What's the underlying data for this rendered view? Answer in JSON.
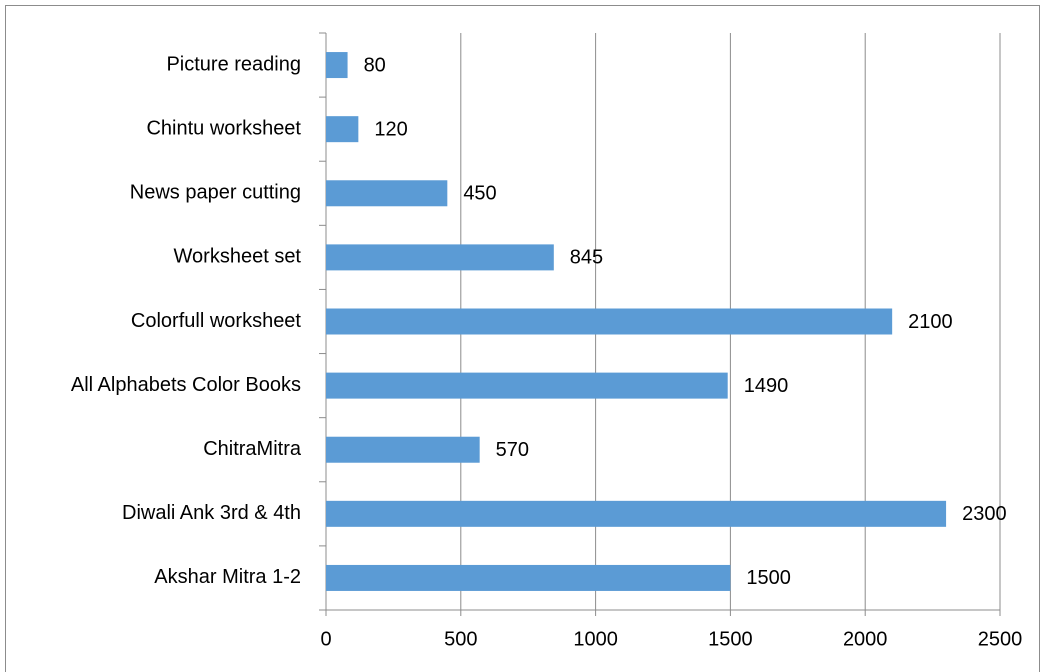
{
  "chart_data": {
    "type": "bar",
    "orientation": "horizontal",
    "categories": [
      "Picture reading",
      "Chintu worksheet",
      "News paper cutting",
      "Worksheet set",
      "Colorfull worksheet",
      "All Alphabets Color Books",
      "ChitraMitra",
      "Diwali Ank 3rd & 4th",
      "Akshar Mitra 1-2"
    ],
    "values": [
      80,
      120,
      450,
      845,
      2100,
      1490,
      570,
      2300,
      1500
    ],
    "color": "#5b9bd5",
    "xlim": [
      0,
      2500
    ],
    "xticks": [
      0,
      500,
      1000,
      1500,
      2000,
      2500
    ],
    "grid": true
  }
}
